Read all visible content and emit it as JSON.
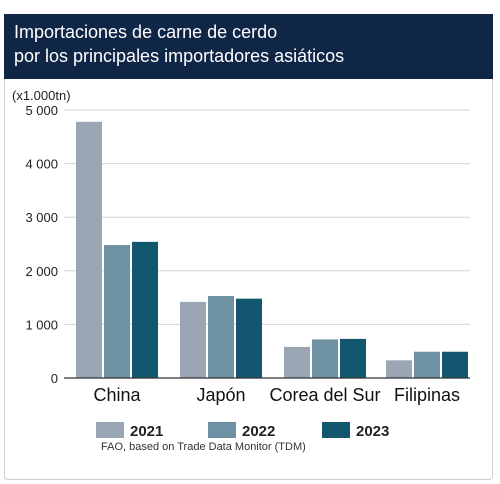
{
  "chart_data": {
    "type": "bar",
    "title": "Importaciones de carne de cerdo por los principales importadores asiáticos",
    "title_lines": [
      "Importaciones de carne de cerdo",
      "por los principales importadores asiáticos"
    ],
    "ylabel": "(x1.000tn)",
    "ylim": [
      0,
      5000
    ],
    "yticks": [
      0,
      1000,
      2000,
      3000,
      4000,
      5000
    ],
    "ytick_labels": [
      "0",
      "1 000",
      "2 000",
      "3 000",
      "4 000",
      "5 000"
    ],
    "categories": [
      "China",
      "Japón",
      "Corea del Sur",
      "Filipinas"
    ],
    "series": [
      {
        "name": "2021",
        "values": [
          4780,
          1420,
          580,
          330
        ],
        "color": "#9aa6b4"
      },
      {
        "name": "2022",
        "values": [
          2480,
          1530,
          720,
          490
        ],
        "color": "#6e92a3"
      },
      {
        "name": "2023",
        "values": [
          2540,
          1480,
          730,
          490
        ],
        "color": "#12566f"
      }
    ],
    "grid": true,
    "legend_position": "bottom"
  },
  "source": "FAO, based on Trade Data Monitor (TDM)",
  "colors": {
    "banner": "#102647",
    "grid": "#d3d6da",
    "axis": "#333333"
  }
}
